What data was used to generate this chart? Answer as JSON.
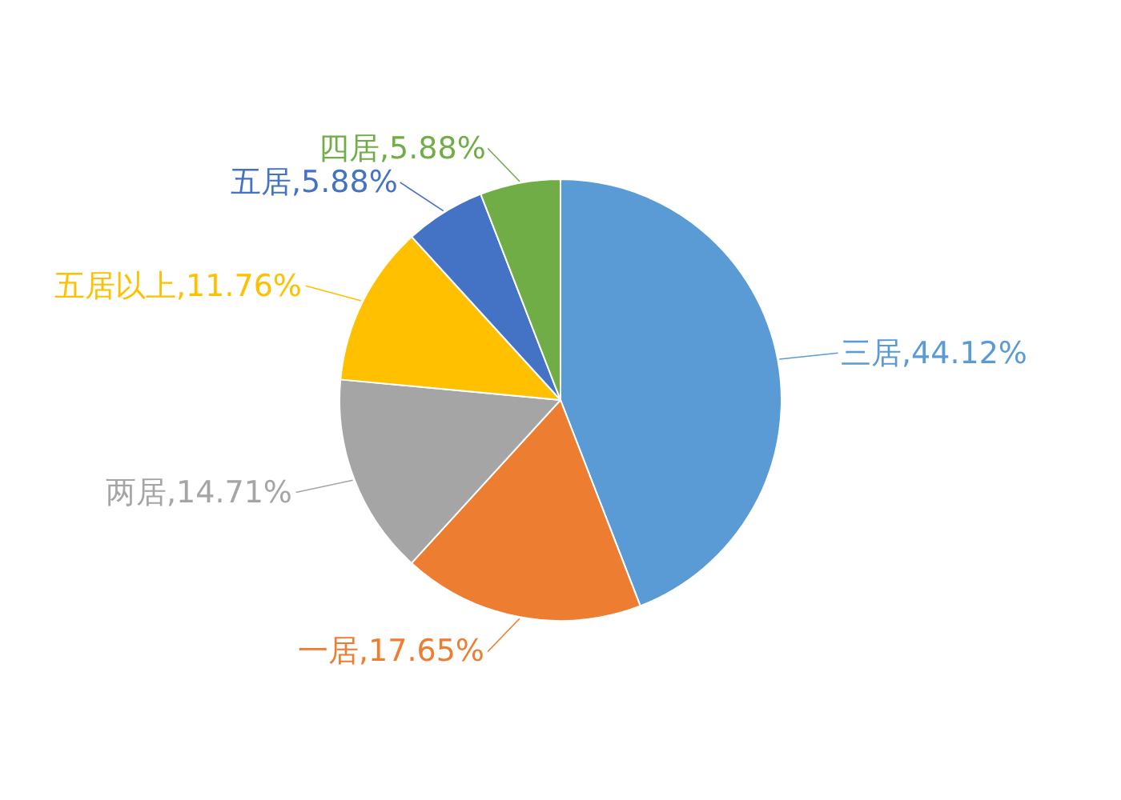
{
  "chart_data": {
    "type": "pie",
    "categories": [
      "三居",
      "一居",
      "两居",
      "五居以上",
      "五居",
      "四居"
    ],
    "values": [
      44.12,
      17.65,
      14.71,
      11.76,
      5.88,
      5.88
    ],
    "colors": [
      "#5b9bd5",
      "#ed7d31",
      "#a5a5a5",
      "#ffc000",
      "#4472c4",
      "#70ad47"
    ],
    "value_labels": [
      "44.12%",
      "17.65%",
      "14.71%",
      "11.76%",
      "5.88%",
      "5.88%"
    ]
  }
}
